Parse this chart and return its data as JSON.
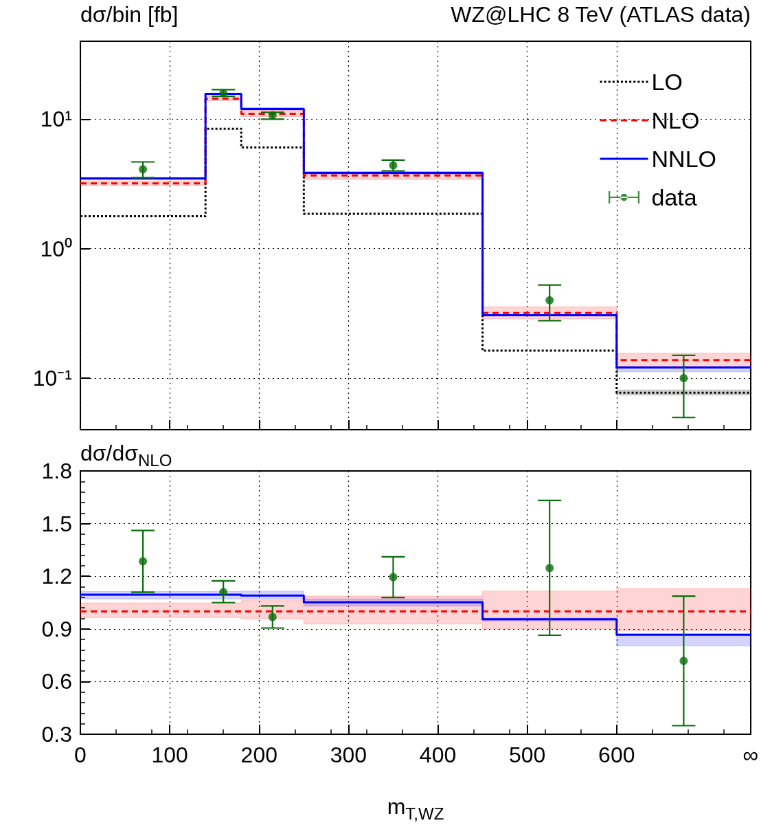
{
  "chart_data": [
    {
      "type": "step",
      "title": "WZ@LHC 8 TeV (ATLAS data)",
      "ylabel": "dσ/bin [fb]",
      "log": "y",
      "grid": true,
      "legend": "top right",
      "tick_labels": "y",
      "marker": "none",
      "xlim": [
        0,
        750
      ],
      "xticks": [
        0,
        100,
        200,
        300,
        400,
        500,
        600,
        {
          "value": 750,
          "label": null
        }
      ],
      "ylim": [
        0.04,
        40
      ],
      "yticks": [
        {
          "value": 0.1,
          "label": "10⁻¹"
        },
        {
          "value": 1,
          "label": "10⁰"
        },
        {
          "value": 10,
          "label": "10¹"
        }
      ],
      "series": [
        {
          "name": "LO",
          "type": "step",
          "color": "#000000",
          "line_style": "dotted",
          "x": [
            0,
            140,
            180,
            250,
            450,
            600,
            750
          ],
          "values": [
            1.78,
            8.45,
            6.05,
            1.86,
            0.163,
            0.0772,
            0.0772
          ],
          "lower": [
            null,
            null,
            null,
            null,
            null,
            0.074,
            0.074
          ],
          "upper": [
            null,
            null,
            null,
            null,
            null,
            0.081,
            0.081
          ]
        },
        {
          "name": "NLO",
          "type": "step",
          "color": "#ff0000",
          "line_style": "dashed",
          "x": [
            0,
            140,
            180,
            250,
            450,
            600,
            750
          ],
          "values": [
            3.19,
            14.4,
            11.0,
            3.68,
            0.319,
            0.138,
            0.138
          ],
          "lower": [
            3.08,
            13.9,
            10.5,
            3.42,
            0.287,
            0.123,
            0.123
          ],
          "upper": [
            3.34,
            15.1,
            11.7,
            3.95,
            0.356,
            0.156,
            0.156
          ]
        },
        {
          "name": "NNLO",
          "type": "step",
          "color": "#0000ff",
          "line_style": "solid",
          "x": [
            0,
            140,
            180,
            250,
            450,
            600,
            750
          ],
          "values": [
            3.49,
            15.7,
            12.0,
            3.85,
            0.306,
            0.121,
            0.121
          ],
          "lower": [
            3.41,
            15.5,
            11.8,
            3.77,
            0.302,
            0.112,
            0.112
          ],
          "upper": [
            3.55,
            15.9,
            12.3,
            3.92,
            0.31,
            0.122,
            0.122
          ]
        },
        {
          "name": "data",
          "type": "scatter",
          "color": "#0a6e0a",
          "marker": "circle",
          "x": [
            70,
            160,
            215,
            350,
            525,
            675
          ],
          "values": [
            4.1,
            15.9,
            10.7,
            4.4,
            0.399,
            0.1
          ],
          "errors": [
            [
              3.54,
              4.68
            ],
            [
              15.0,
              16.9
            ],
            [
              10.0,
              11.3
            ],
            [
              3.99,
              4.83
            ],
            [
              0.278,
              0.524
            ],
            [
              0.0497,
              0.15
            ]
          ]
        }
      ]
    },
    {
      "type": "step",
      "ylabel": "dσ/dσ$_{NLO}$",
      "xlabel": "m$_{T,WZ}$",
      "grid": true,
      "legend": false,
      "marker": "none",
      "xlim": [
        0,
        750
      ],
      "xticks": [
        0,
        100,
        200,
        300,
        400,
        500,
        600,
        {
          "value": 750,
          "label": "∞"
        }
      ],
      "ylim": [
        0.3,
        1.8
      ],
      "yticks": [
        0.3,
        0.6,
        0.9,
        1.2,
        1.5,
        1.8
      ],
      "series": [
        {
          "type": "step",
          "color": "#ff0000",
          "line_style": "dashed",
          "x": [
            0,
            140,
            180,
            250,
            450,
            600,
            750
          ],
          "values": [
            1.0,
            1.0,
            1.0,
            1.0,
            1.0,
            1.0,
            1.0
          ],
          "lower": [
            0.965,
            0.965,
            0.957,
            0.928,
            0.899,
            0.89,
            0.89
          ],
          "upper": [
            1.048,
            1.048,
            1.061,
            1.087,
            1.116,
            1.13,
            1.13
          ]
        },
        {
          "type": "step",
          "color": "#0000ff",
          "line_style": "solid",
          "x": [
            0,
            140,
            180,
            250,
            450,
            600,
            750
          ],
          "values": [
            1.095,
            1.095,
            1.09,
            1.052,
            0.955,
            0.867,
            0.867
          ],
          "lower": [
            1.071,
            1.071,
            1.069,
            1.03,
            0.945,
            0.803,
            0.803
          ],
          "upper": [
            1.113,
            1.113,
            1.116,
            1.071,
            0.962,
            0.872,
            0.872
          ]
        },
        {
          "type": "scatter",
          "color": "#0a6e0a",
          "marker": "circle",
          "x": [
            70,
            160,
            215,
            350,
            525,
            675
          ],
          "values": [
            1.285,
            1.11,
            0.968,
            1.195,
            1.247,
            0.718
          ],
          "errors": [
            [
              1.109,
              1.461
            ],
            [
              1.05,
              1.174
            ],
            [
              0.905,
              1.031
            ],
            [
              1.079,
              1.311
            ],
            [
              0.864,
              1.632
            ],
            [
              0.349,
              1.087
            ]
          ]
        }
      ]
    }
  ]
}
